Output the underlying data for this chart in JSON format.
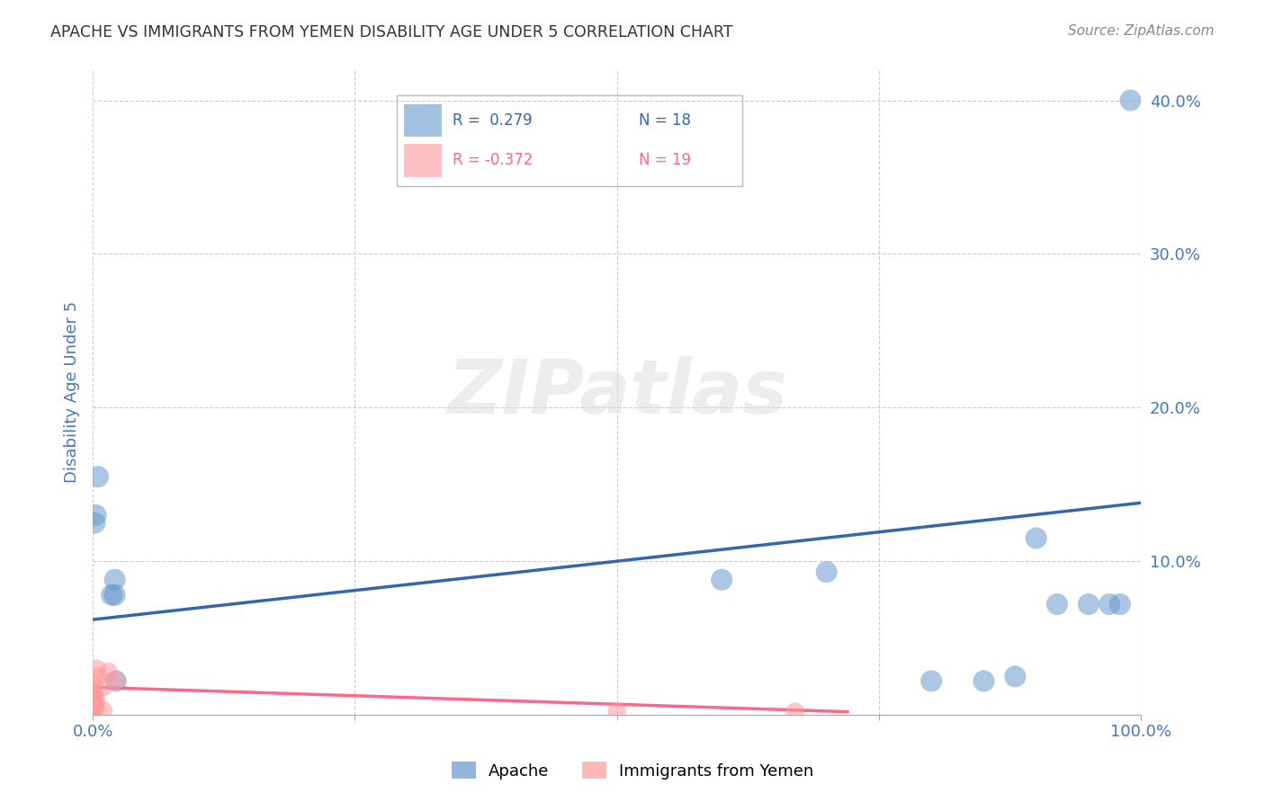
{
  "title": "APACHE VS IMMIGRANTS FROM YEMEN DISABILITY AGE UNDER 5 CORRELATION CHART",
  "source": "Source: ZipAtlas.com",
  "ylabel": "Disability Age Under 5",
  "watermark": "ZIPatlas",
  "legend_blue_r": "R =  0.279",
  "legend_blue_n": "N = 18",
  "legend_pink_r": "R = -0.372",
  "legend_pink_n": "N = 19",
  "xlim": [
    0,
    1.0
  ],
  "ylim": [
    0,
    0.42
  ],
  "xticks": [
    0.0,
    0.25,
    0.5,
    0.75,
    1.0
  ],
  "xtick_labels": [
    "0.0%",
    "",
    "",
    "",
    "100.0%"
  ],
  "yticks": [
    0.0,
    0.1,
    0.2,
    0.3,
    0.4
  ],
  "ytick_labels": [
    "",
    "10.0%",
    "20.0%",
    "30.0%",
    "40.0%"
  ],
  "blue_scatter_x": [
    0.002,
    0.003,
    0.005,
    0.018,
    0.021,
    0.021,
    0.022,
    0.6,
    0.7,
    0.8,
    0.85,
    0.88,
    0.9,
    0.92,
    0.95,
    0.97,
    0.98,
    0.99
  ],
  "blue_scatter_y": [
    0.125,
    0.13,
    0.155,
    0.078,
    0.078,
    0.088,
    0.022,
    0.088,
    0.093,
    0.022,
    0.022,
    0.025,
    0.115,
    0.072,
    0.072,
    0.072,
    0.072,
    0.4
  ],
  "pink_scatter_x": [
    0.0,
    0.0,
    0.0,
    0.001,
    0.001,
    0.001,
    0.001,
    0.002,
    0.002,
    0.003,
    0.003,
    0.004,
    0.005,
    0.01,
    0.01,
    0.015,
    0.022,
    0.5,
    0.67
  ],
  "pink_scatter_y": [
    0.005,
    0.01,
    0.015,
    0.005,
    0.008,
    0.01,
    0.02,
    0.005,
    0.012,
    0.005,
    0.01,
    0.03,
    0.025,
    0.003,
    0.018,
    0.028,
    0.022,
    0.002,
    0.002
  ],
  "blue_line_x": [
    0.0,
    1.0
  ],
  "blue_line_y": [
    0.062,
    0.138
  ],
  "pink_line_x": [
    0.0,
    0.72
  ],
  "pink_line_y": [
    0.018,
    0.002
  ],
  "blue_color": "#6699CC",
  "pink_color": "#FF9999",
  "blue_line_color": "#3366AA",
  "pink_line_color": "#FF6688",
  "grid_color": "#CCCCCC",
  "background_color": "#FFFFFF",
  "title_color": "#333333",
  "axis_label_color": "#4477BB",
  "tick_label_color": "#4477BB",
  "legend_label_blue": "Apache",
  "legend_label_pink": "Immigrants from Yemen"
}
